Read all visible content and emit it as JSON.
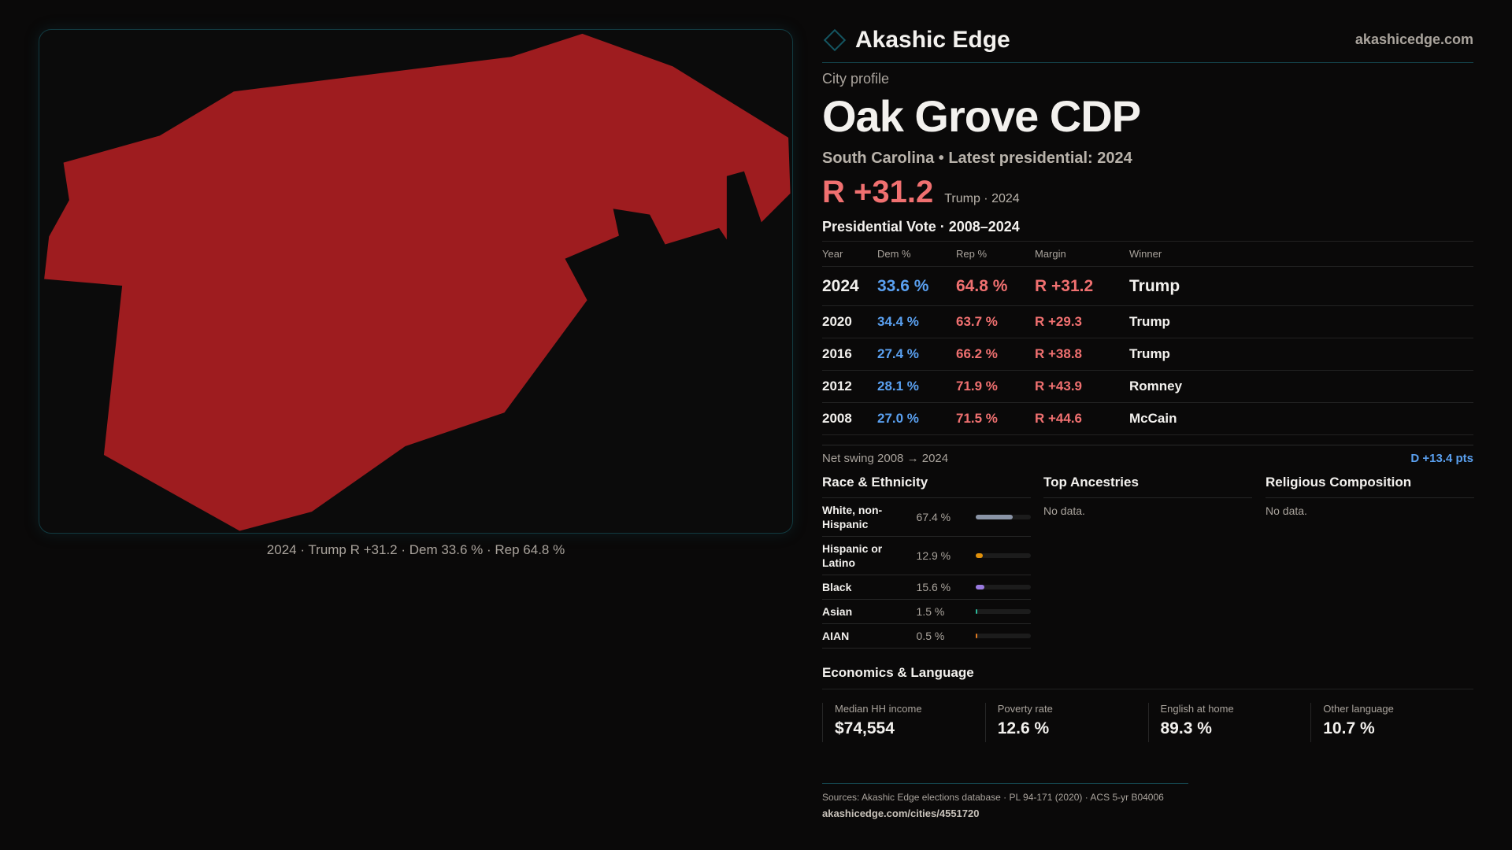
{
  "map": {
    "caption": "2024 · Trump R +31.2 · Dem 33.6 % · Rep 64.8 %",
    "fill": "#9e1c1f"
  },
  "header": {
    "brand": "Akashic Edge",
    "site": "akashicedge.com"
  },
  "profile": {
    "kicker": "City profile",
    "title": "Oak Grove CDP",
    "subtitle": "South Carolina • Latest presidential: 2024",
    "margin": "R +31.2",
    "winner_note": "Trump · 2024"
  },
  "votes": {
    "heading": "Presidential Vote · 2008–2024",
    "columns": [
      "Year",
      "Dem %",
      "Rep %",
      "Margin",
      "Winner"
    ],
    "rows": [
      {
        "year": "2024",
        "dem": "33.6 %",
        "rep": "64.8 %",
        "margin": "R +31.2",
        "winner": "Trump"
      },
      {
        "year": "2020",
        "dem": "34.4 %",
        "rep": "63.7 %",
        "margin": "R +29.3",
        "winner": "Trump"
      },
      {
        "year": "2016",
        "dem": "27.4 %",
        "rep": "66.2 %",
        "margin": "R +38.8",
        "winner": "Trump"
      },
      {
        "year": "2012",
        "dem": "28.1 %",
        "rep": "71.9 %",
        "margin": "R +43.9",
        "winner": "Romney"
      },
      {
        "year": "2008",
        "dem": "27.0 %",
        "rep": "71.5 %",
        "margin": "R +44.6",
        "winner": "McCain"
      }
    ],
    "swing_label": "Net swing 2008 → 2024",
    "swing_value": "D +13.4 pts"
  },
  "race": {
    "heading": "Race & Ethnicity",
    "rows": [
      {
        "name": "White, non-Hispanic",
        "value": "67.4 %",
        "pct": 67.4,
        "color": "#8a94a6"
      },
      {
        "name": "Hispanic or Latino",
        "value": "12.9 %",
        "pct": 12.9,
        "color": "#e0900a"
      },
      {
        "name": "Black",
        "value": "15.6 %",
        "pct": 15.6,
        "color": "#9a7ae0"
      },
      {
        "name": "Asian",
        "value": "1.5 %",
        "pct": 1.5,
        "color": "#2ab89a"
      },
      {
        "name": "AIAN",
        "value": "0.5 %",
        "pct": 0.5,
        "color": "#e07a20"
      }
    ]
  },
  "ancestries": {
    "heading": "Top Ancestries",
    "empty": "No data."
  },
  "religion": {
    "heading": "Religious Composition",
    "empty": "No data."
  },
  "economics": {
    "heading": "Economics & Language",
    "stats": [
      {
        "label": "Median HH income",
        "value": "$74,554"
      },
      {
        "label": "Poverty rate",
        "value": "12.6 %"
      },
      {
        "label": "English at home",
        "value": "89.3 %"
      },
      {
        "label": "Other language",
        "value": "10.7 %"
      }
    ]
  },
  "footer": {
    "sources": "Sources: Akashic Edge elections database · PL 94-171 (2020) · ACS 5-yr B04006",
    "url": "akashicedge.com/cities/4551720"
  }
}
